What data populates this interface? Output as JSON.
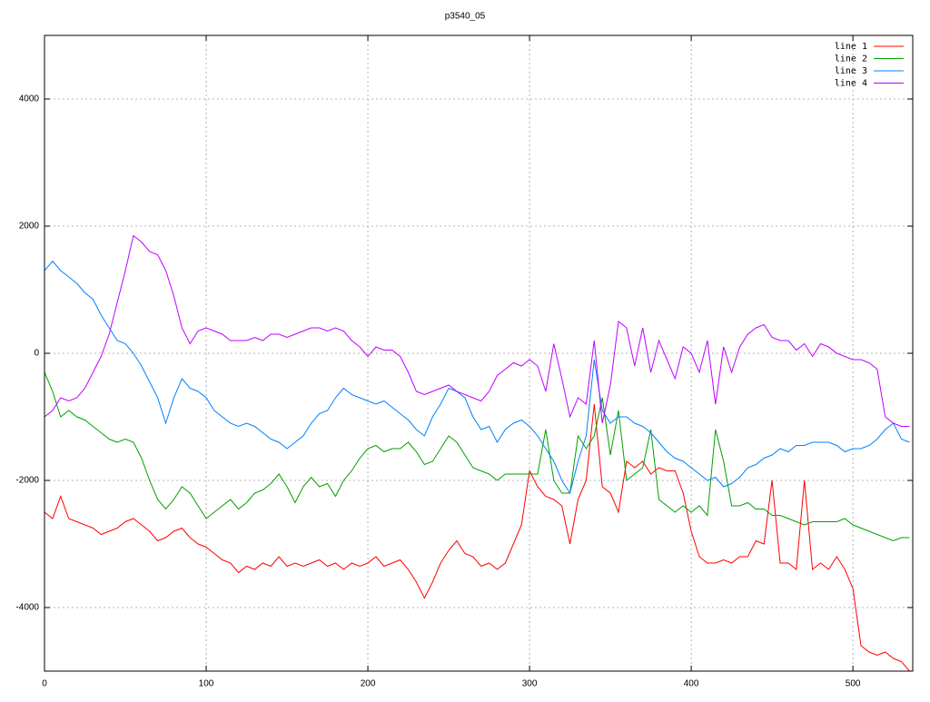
{
  "chart_data": {
    "type": "line",
    "title": "p3540_05",
    "x": [
      0,
      5,
      10,
      15,
      20,
      25,
      30,
      35,
      40,
      45,
      50,
      55,
      60,
      65,
      70,
      75,
      80,
      85,
      90,
      95,
      100,
      105,
      110,
      115,
      120,
      125,
      130,
      135,
      140,
      145,
      150,
      155,
      160,
      165,
      170,
      175,
      180,
      185,
      190,
      195,
      200,
      205,
      210,
      215,
      220,
      225,
      230,
      235,
      240,
      245,
      250,
      255,
      260,
      265,
      270,
      275,
      280,
      285,
      290,
      295,
      300,
      305,
      310,
      315,
      320,
      325,
      330,
      335,
      340,
      345,
      350,
      355,
      360,
      365,
      370,
      375,
      380,
      385,
      390,
      395,
      400,
      405,
      410,
      415,
      420,
      425,
      430,
      435,
      440,
      445,
      450,
      455,
      460,
      465,
      470,
      475,
      480,
      485,
      490,
      495,
      500,
      505,
      510,
      515,
      520,
      525,
      530,
      535
    ],
    "series": [
      {
        "name": "line 1",
        "color": "#ff0000",
        "values": [
          -2500,
          -2600,
          -2250,
          -2600,
          -2650,
          -2700,
          -2750,
          -2850,
          -2800,
          -2750,
          -2650,
          -2600,
          -2700,
          -2800,
          -2950,
          -2900,
          -2800,
          -2750,
          -2900,
          -3000,
          -3050,
          -3150,
          -3250,
          -3300,
          -3450,
          -3350,
          -3400,
          -3300,
          -3350,
          -3200,
          -3350,
          -3300,
          -3350,
          -3300,
          -3250,
          -3350,
          -3300,
          -3400,
          -3300,
          -3350,
          -3300,
          -3200,
          -3350,
          -3300,
          -3250,
          -3400,
          -3600,
          -3850,
          -3600,
          -3300,
          -3100,
          -2950,
          -3150,
          -3200,
          -3350,
          -3300,
          -3400,
          -3300,
          -3000,
          -2700,
          -1850,
          -2100,
          -2250,
          -2300,
          -2400,
          -3000,
          -2300,
          -2000,
          -800,
          -2100,
          -2200,
          -2500,
          -1700,
          -1800,
          -1700,
          -1900,
          -1800,
          -1850,
          -1850,
          -2200,
          -2800,
          -3200,
          -3300,
          -3300,
          -3250,
          -3300,
          -3200,
          -3200,
          -2950,
          -3000,
          -2000,
          -3300,
          -3300,
          -3400,
          -2000,
          -3400,
          -3300,
          -3400,
          -3200,
          -3400,
          -3700,
          -4600,
          -4700,
          -4750,
          -4700,
          -4800,
          -4850,
          -5000
        ]
      },
      {
        "name": "line 2",
        "color": "#00a000",
        "values": [
          -300,
          -600,
          -1000,
          -900,
          -1000,
          -1050,
          -1150,
          -1250,
          -1350,
          -1400,
          -1350,
          -1400,
          -1650,
          -2000,
          -2300,
          -2450,
          -2300,
          -2100,
          -2200,
          -2400,
          -2600,
          -2500,
          -2400,
          -2300,
          -2450,
          -2350,
          -2200,
          -2150,
          -2050,
          -1900,
          -2100,
          -2350,
          -2100,
          -1950,
          -2100,
          -2050,
          -2250,
          -2000,
          -1850,
          -1650,
          -1500,
          -1450,
          -1550,
          -1500,
          -1500,
          -1400,
          -1550,
          -1750,
          -1700,
          -1500,
          -1300,
          -1400,
          -1600,
          -1800,
          -1850,
          -1900,
          -2000,
          -1900,
          -1900,
          -1900,
          -1900,
          -1900,
          -1200,
          -2000,
          -2200,
          -2200,
          -1300,
          -1500,
          -1300,
          -700,
          -1600,
          -900,
          -2000,
          -1900,
          -1800,
          -1200,
          -2300,
          -2400,
          -2500,
          -2400,
          -2500,
          -2400,
          -2550,
          -1200,
          -1700,
          -2400,
          -2400,
          -2350,
          -2450,
          -2450,
          -2550,
          -2550,
          -2600,
          -2650,
          -2700,
          -2650,
          -2650,
          -2650,
          -2650,
          -2600,
          -2700,
          -2750,
          -2800,
          -2850,
          -2900,
          -2950,
          -2900,
          -2900
        ]
      },
      {
        "name": "line 3",
        "color": "#0080ff",
        "values": [
          1300,
          1450,
          1300,
          1200,
          1100,
          950,
          850,
          600,
          400,
          200,
          150,
          0,
          -200,
          -450,
          -700,
          -1100,
          -700,
          -400,
          -550,
          -600,
          -700,
          -900,
          -1000,
          -1100,
          -1150,
          -1100,
          -1150,
          -1250,
          -1350,
          -1400,
          -1500,
          -1400,
          -1300,
          -1100,
          -950,
          -900,
          -700,
          -550,
          -650,
          -700,
          -750,
          -800,
          -750,
          -850,
          -950,
          -1050,
          -1200,
          -1300,
          -1000,
          -800,
          -550,
          -600,
          -700,
          -1000,
          -1200,
          -1150,
          -1400,
          -1200,
          -1100,
          -1050,
          -1150,
          -1300,
          -1500,
          -1700,
          -2000,
          -2200,
          -1700,
          -1300,
          -100,
          -900,
          -1100,
          -1000,
          -1000,
          -1100,
          -1150,
          -1250,
          -1400,
          -1550,
          -1650,
          -1700,
          -1800,
          -1900,
          -2000,
          -1950,
          -2100,
          -2050,
          -1950,
          -1800,
          -1750,
          -1650,
          -1600,
          -1500,
          -1550,
          -1450,
          -1450,
          -1400,
          -1400,
          -1400,
          -1450,
          -1550,
          -1500,
          -1500,
          -1450,
          -1350,
          -1200,
          -1100,
          -1350,
          -1400
        ]
      },
      {
        "name": "line 4",
        "color": "#c000ff",
        "values": [
          -1000,
          -900,
          -700,
          -750,
          -700,
          -550,
          -300,
          -50,
          300,
          800,
          1300,
          1850,
          1750,
          1600,
          1550,
          1300,
          900,
          400,
          150,
          350,
          400,
          350,
          300,
          200,
          200,
          200,
          250,
          200,
          300,
          300,
          250,
          300,
          350,
          400,
          400,
          350,
          400,
          350,
          200,
          100,
          -50,
          100,
          50,
          50,
          -50,
          -300,
          -600,
          -650,
          -600,
          -550,
          -500,
          -600,
          -650,
          -700,
          -750,
          -600,
          -350,
          -250,
          -150,
          -200,
          -100,
          -200,
          -600,
          150,
          -400,
          -1000,
          -700,
          -800,
          200,
          -1100,
          -500,
          500,
          400,
          -200,
          400,
          -300,
          200,
          -100,
          -400,
          100,
          0,
          -300,
          200,
          -800,
          100,
          -300,
          100,
          300,
          400,
          450,
          250,
          200,
          200,
          50,
          150,
          -50,
          150,
          100,
          0,
          -50,
          -100,
          -100,
          -150,
          -250,
          -1000,
          -1100,
          -1150,
          -1150
        ]
      }
    ],
    "xlim": [
      0,
      537
    ],
    "xticks": [
      0,
      100,
      200,
      300,
      400,
      500
    ],
    "ylim": [
      -5000,
      5000
    ],
    "yticks": [
      -4000,
      -2000,
      0,
      2000,
      4000
    ],
    "grid": true,
    "legend": "top-right"
  }
}
